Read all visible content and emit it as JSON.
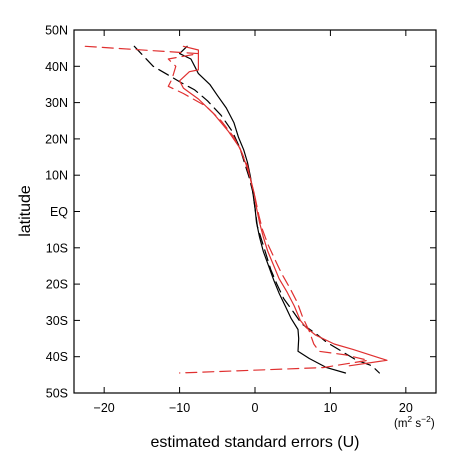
{
  "chart_data": {
    "type": "line",
    "title": "",
    "xlabel": "estimated standard errors (U)",
    "xunit": {
      "base": "(m",
      "sup1": "2",
      "mid": " s",
      "sup2": "−2",
      "end": ")"
    },
    "ylabel": "latitude",
    "xlim": [
      -24,
      24
    ],
    "ylim": [
      -50,
      50
    ],
    "x_ticks": [
      -20,
      -10,
      0,
      10,
      20
    ],
    "x_tick_labels": [
      "−20",
      "−10",
      "0",
      "10",
      "20"
    ],
    "y_ticks": [
      -50,
      -40,
      -30,
      -20,
      -10,
      0,
      10,
      20,
      30,
      40,
      50
    ],
    "y_tick_labels": [
      "50S",
      "40S",
      "30S",
      "20S",
      "10S",
      "EQ",
      "10N",
      "20N",
      "30N",
      "40N",
      "50N"
    ],
    "grid": false,
    "legend": "none",
    "series": [
      {
        "color": "#000000",
        "dash": "solid",
        "points": [
          [
            -9,
            45.5
          ],
          [
            -10,
            43.5
          ],
          [
            -8.5,
            42
          ],
          [
            -8,
            40
          ],
          [
            -7.5,
            38
          ],
          [
            -6,
            35
          ],
          [
            -5,
            32
          ],
          [
            -3.8,
            28.5
          ],
          [
            -2.8,
            24.5
          ],
          [
            -2.2,
            20.5
          ],
          [
            -1.5,
            17
          ],
          [
            -1,
            13.5
          ],
          [
            -0.6,
            9.5
          ],
          [
            -0.3,
            5.5
          ],
          [
            0,
            1
          ],
          [
            0.2,
            -3
          ],
          [
            0.6,
            -7
          ],
          [
            1.1,
            -11
          ],
          [
            1.8,
            -15
          ],
          [
            2.5,
            -19
          ],
          [
            3.2,
            -22.5
          ],
          [
            4,
            -26
          ],
          [
            4.8,
            -29.5
          ],
          [
            5.7,
            -32.5
          ],
          [
            5.8,
            -35
          ],
          [
            5.7,
            -38.5
          ],
          [
            7.2,
            -40.5
          ],
          [
            9.5,
            -43
          ],
          [
            12,
            -44.5
          ]
        ]
      },
      {
        "color": "#000000",
        "dash": "long-dash",
        "points": [
          [
            -16,
            45.5
          ],
          [
            -13.5,
            40
          ],
          [
            -11,
            37
          ],
          [
            -9.8,
            35.5
          ],
          [
            -8,
            33.5
          ],
          [
            -6.3,
            30.5
          ],
          [
            -4.5,
            26.5
          ],
          [
            -3,
            22
          ],
          [
            -2,
            17.5
          ],
          [
            -1.4,
            13.5
          ],
          [
            -0.8,
            9.5
          ],
          [
            -0.3,
            5.5
          ],
          [
            0,
            1
          ],
          [
            0.3,
            -4
          ],
          [
            0.9,
            -8
          ],
          [
            1.5,
            -12
          ],
          [
            2.1,
            -16
          ],
          [
            2.9,
            -20
          ],
          [
            3.8,
            -24
          ],
          [
            5.2,
            -28
          ],
          [
            6.2,
            -31
          ],
          [
            8,
            -33.5
          ],
          [
            9.5,
            -36
          ],
          [
            11.5,
            -38.5
          ],
          [
            13.5,
            -41
          ],
          [
            15.5,
            -42.5
          ],
          [
            16.5,
            -44.5
          ]
        ]
      },
      {
        "color": "#e03030",
        "dash": "solid",
        "points": [
          [
            -9.5,
            45.5
          ],
          [
            -7.5,
            44.5
          ],
          [
            -7.5,
            39
          ],
          [
            -8.7,
            38.5
          ],
          [
            -10,
            36
          ],
          [
            -9.5,
            34
          ],
          [
            -7.5,
            31
          ],
          [
            -5.5,
            27
          ],
          [
            -3.5,
            22
          ],
          [
            -2,
            17.5
          ],
          [
            -1.2,
            13
          ],
          [
            -0.6,
            9
          ],
          [
            -0.1,
            5
          ],
          [
            0.2,
            1
          ],
          [
            0.6,
            -3
          ],
          [
            1.1,
            -7
          ],
          [
            1.7,
            -11
          ],
          [
            2.4,
            -14.5
          ],
          [
            3.2,
            -18.5
          ],
          [
            4.2,
            -22
          ],
          [
            5.2,
            -26
          ],
          [
            6,
            -30
          ],
          [
            6.8,
            -32
          ],
          [
            8,
            -34
          ],
          [
            10.5,
            -36.5
          ],
          [
            13,
            -38
          ],
          [
            17.5,
            -41
          ],
          [
            12.5,
            -42.5
          ]
        ]
      },
      {
        "color": "#e03030",
        "dash": "long-dash",
        "points": [
          [
            -22.5,
            45.5
          ],
          [
            -7.5,
            43.5
          ],
          [
            -11.5,
            42
          ],
          [
            -10.5,
            40
          ],
          [
            -11,
            36.5
          ],
          [
            -11.5,
            34.5
          ],
          [
            -9.5,
            32.5
          ],
          [
            -6.5,
            29
          ],
          [
            -4.5,
            25
          ],
          [
            -2.8,
            20.5
          ],
          [
            -1.8,
            16.5
          ],
          [
            -1,
            12.5
          ],
          [
            -0.5,
            8
          ],
          [
            0,
            4
          ],
          [
            0.5,
            -1
          ],
          [
            1,
            -5
          ],
          [
            1.7,
            -9
          ],
          [
            2.6,
            -13
          ],
          [
            3.5,
            -17
          ],
          [
            4.6,
            -21
          ],
          [
            5.6,
            -25
          ],
          [
            6.3,
            -29
          ],
          [
            7.2,
            -33
          ],
          [
            7.8,
            -36.5
          ],
          [
            8.5,
            -38.5
          ],
          [
            12,
            -39.5
          ],
          [
            15,
            -41
          ],
          [
            9,
            -43
          ],
          [
            -10,
            -44.5
          ]
        ]
      }
    ]
  }
}
